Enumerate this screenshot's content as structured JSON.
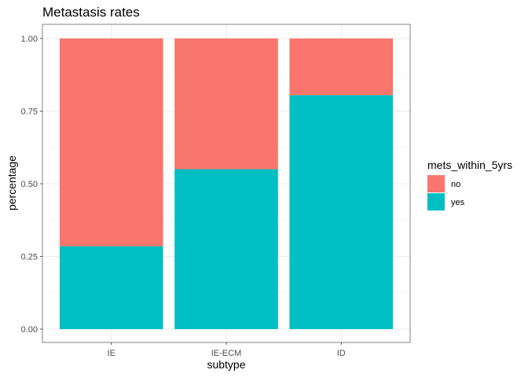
{
  "chart_data": {
    "type": "bar",
    "stacked": true,
    "title": "Metastasis rates",
    "xlabel": "subtype",
    "ylabel": "percentage",
    "categories": [
      "IE",
      "IE-ECM",
      "ID"
    ],
    "series": [
      {
        "name": "no",
        "color": "#F8766D",
        "values": [
          0.715,
          0.45,
          0.195
        ]
      },
      {
        "name": "yes",
        "color": "#00BFC4",
        "values": [
          0.285,
          0.55,
          0.805
        ]
      }
    ],
    "ylim": [
      0,
      1
    ],
    "yticks": [
      "0.00",
      "0.25",
      "0.50",
      "0.75",
      "1.00"
    ],
    "grid": true,
    "legend": {
      "title": "mets_within_5yrs",
      "position": "right"
    }
  }
}
